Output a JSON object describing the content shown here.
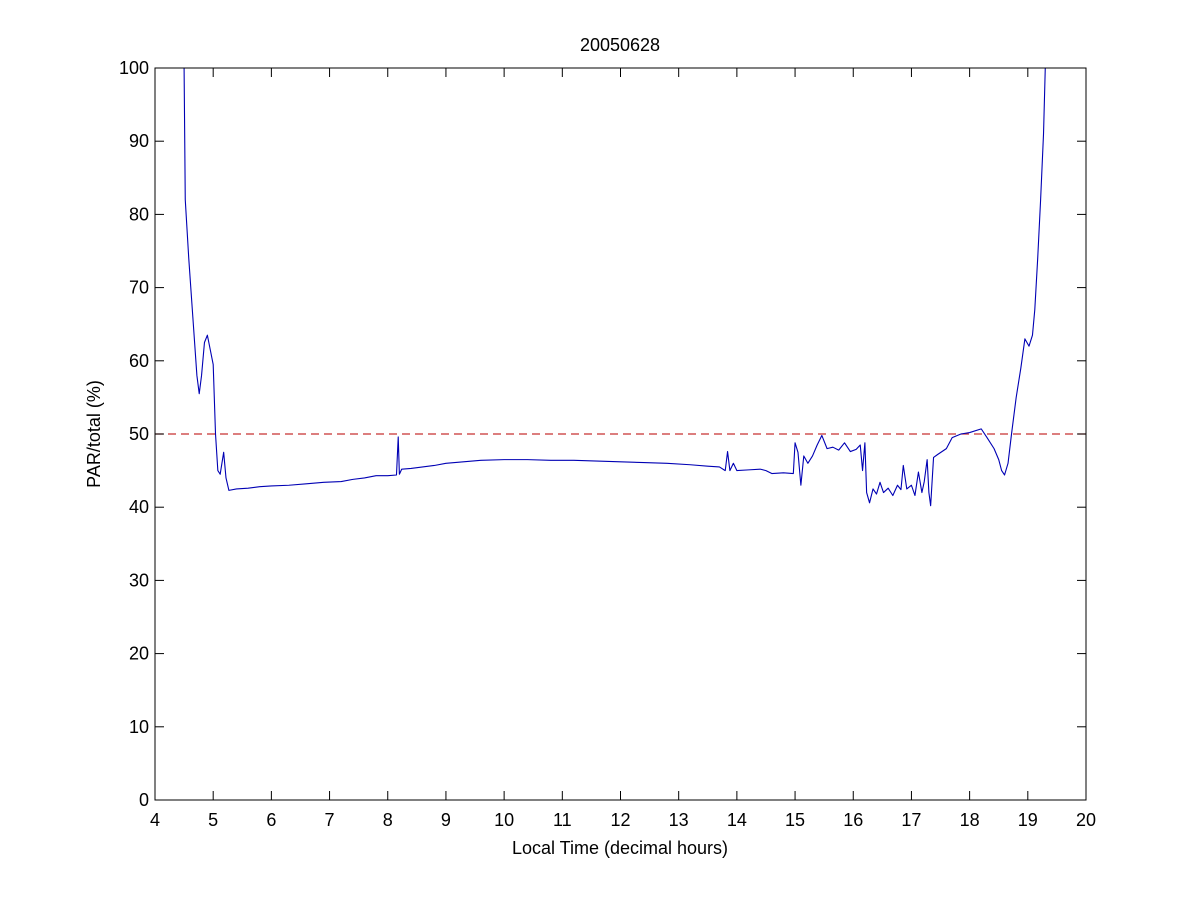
{
  "chart_data": {
    "type": "line",
    "title": "20050628",
    "xlabel": "Local Time (decimal hours)",
    "ylabel": "PAR/total (%)",
    "xlim": [
      4,
      20
    ],
    "ylim": [
      0,
      100
    ],
    "xticks": [
      4,
      5,
      6,
      7,
      8,
      9,
      10,
      11,
      12,
      13,
      14,
      15,
      16,
      17,
      18,
      19,
      20
    ],
    "yticks": [
      0,
      10,
      20,
      30,
      40,
      50,
      60,
      70,
      80,
      90,
      100
    ],
    "grid": false,
    "reference_line": {
      "y": 50,
      "style": "dashed",
      "color": "#c83232"
    },
    "series": [
      {
        "color": "#0000b4",
        "points": [
          [
            4.5,
            100
          ],
          [
            4.52,
            82
          ],
          [
            4.58,
            74
          ],
          [
            4.65,
            66
          ],
          [
            4.72,
            58
          ],
          [
            4.76,
            55.5
          ],
          [
            4.8,
            58
          ],
          [
            4.85,
            62.5
          ],
          [
            4.9,
            63.5
          ],
          [
            4.95,
            61.5
          ],
          [
            5.0,
            59.5
          ],
          [
            5.04,
            50
          ],
          [
            5.08,
            45
          ],
          [
            5.12,
            44.5
          ],
          [
            5.18,
            47.5
          ],
          [
            5.22,
            44
          ],
          [
            5.27,
            42.3
          ],
          [
            5.4,
            42.5
          ],
          [
            5.6,
            42.6
          ],
          [
            5.8,
            42.8
          ],
          [
            6.0,
            42.9
          ],
          [
            6.3,
            43.0
          ],
          [
            6.6,
            43.2
          ],
          [
            6.9,
            43.4
          ],
          [
            7.2,
            43.5
          ],
          [
            7.4,
            43.8
          ],
          [
            7.6,
            44.0
          ],
          [
            7.8,
            44.3
          ],
          [
            8.0,
            44.3
          ],
          [
            8.15,
            44.4
          ],
          [
            8.18,
            49.6
          ],
          [
            8.2,
            44.5
          ],
          [
            8.24,
            45.2
          ],
          [
            8.4,
            45.3
          ],
          [
            8.6,
            45.5
          ],
          [
            8.8,
            45.7
          ],
          [
            9.0,
            46.0
          ],
          [
            9.3,
            46.2
          ],
          [
            9.6,
            46.4
          ],
          [
            10.0,
            46.5
          ],
          [
            10.4,
            46.5
          ],
          [
            10.8,
            46.4
          ],
          [
            11.2,
            46.4
          ],
          [
            11.6,
            46.3
          ],
          [
            12.0,
            46.2
          ],
          [
            12.4,
            46.1
          ],
          [
            12.8,
            46.0
          ],
          [
            13.2,
            45.8
          ],
          [
            13.5,
            45.6
          ],
          [
            13.7,
            45.5
          ],
          [
            13.8,
            45.0
          ],
          [
            13.84,
            47.6
          ],
          [
            13.88,
            45.0
          ],
          [
            13.94,
            46.0
          ],
          [
            14.0,
            45.0
          ],
          [
            14.2,
            45.1
          ],
          [
            14.4,
            45.2
          ],
          [
            14.5,
            45.0
          ],
          [
            14.6,
            44.6
          ],
          [
            14.8,
            44.7
          ],
          [
            14.97,
            44.6
          ],
          [
            15.0,
            48.8
          ],
          [
            15.05,
            47.5
          ],
          [
            15.1,
            43.0
          ],
          [
            15.15,
            47.0
          ],
          [
            15.22,
            46.0
          ],
          [
            15.3,
            47.0
          ],
          [
            15.38,
            48.5
          ],
          [
            15.46,
            49.8
          ],
          [
            15.55,
            48.0
          ],
          [
            15.65,
            48.2
          ],
          [
            15.75,
            47.8
          ],
          [
            15.85,
            48.8
          ],
          [
            15.95,
            47.6
          ],
          [
            16.05,
            47.9
          ],
          [
            16.12,
            48.5
          ],
          [
            16.16,
            45.0
          ],
          [
            16.2,
            48.8
          ],
          [
            16.23,
            42.0
          ],
          [
            16.28,
            40.6
          ],
          [
            16.34,
            42.5
          ],
          [
            16.4,
            41.8
          ],
          [
            16.46,
            43.4
          ],
          [
            16.52,
            42.0
          ],
          [
            16.6,
            42.6
          ],
          [
            16.68,
            41.6
          ],
          [
            16.76,
            43.0
          ],
          [
            16.82,
            42.4
          ],
          [
            16.86,
            45.7
          ],
          [
            16.92,
            42.5
          ],
          [
            17.0,
            43.0
          ],
          [
            17.06,
            41.6
          ],
          [
            17.12,
            44.8
          ],
          [
            17.18,
            42.0
          ],
          [
            17.22,
            43.5
          ],
          [
            17.27,
            46.5
          ],
          [
            17.3,
            42.0
          ],
          [
            17.33,
            40.2
          ],
          [
            17.38,
            46.8
          ],
          [
            17.45,
            47.2
          ],
          [
            17.6,
            48.0
          ],
          [
            17.7,
            49.5
          ],
          [
            17.85,
            50.0
          ],
          [
            18.0,
            50.2
          ],
          [
            18.2,
            50.7
          ],
          [
            18.3,
            49.5
          ],
          [
            18.42,
            48.0
          ],
          [
            18.5,
            46.5
          ],
          [
            18.55,
            45.0
          ],
          [
            18.6,
            44.4
          ],
          [
            18.66,
            46.0
          ],
          [
            18.72,
            50.0
          ],
          [
            18.8,
            55.0
          ],
          [
            18.88,
            59.0
          ],
          [
            18.95,
            63.0
          ],
          [
            19.02,
            62.0
          ],
          [
            19.08,
            63.5
          ],
          [
            19.12,
            67.0
          ],
          [
            19.17,
            74.0
          ],
          [
            19.22,
            82.0
          ],
          [
            19.27,
            91.0
          ],
          [
            19.3,
            100
          ]
        ]
      }
    ]
  }
}
